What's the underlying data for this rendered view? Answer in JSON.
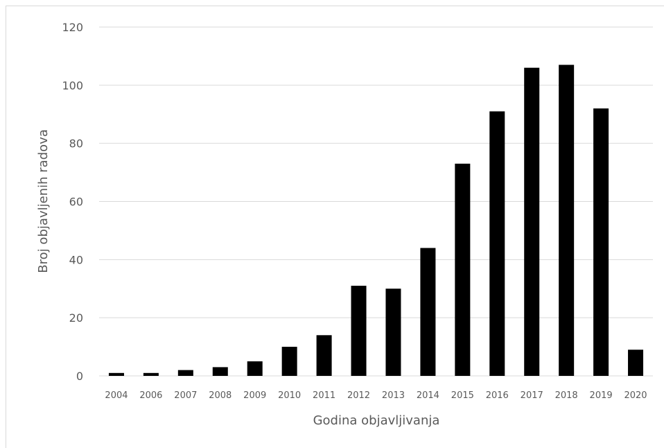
{
  "chart_data": {
    "type": "bar",
    "title": "",
    "xlabel": "Godina objavljivanja",
    "ylabel": "Broj objavljenih radova",
    "ylim": [
      0,
      120
    ],
    "yticks": [
      "0",
      "20",
      "40",
      "60",
      "80",
      "100",
      "120"
    ],
    "grid": true,
    "legend": "none",
    "categories": [
      "2004",
      "2006",
      "2007",
      "2008",
      "2009",
      "2010",
      "2011",
      "2012",
      "2013",
      "2014",
      "2015",
      "2016",
      "2017",
      "2018",
      "2019",
      "2020"
    ],
    "values": [
      1,
      1,
      2,
      3,
      5,
      10,
      14,
      31,
      30,
      44,
      73,
      91,
      106,
      107,
      92,
      9
    ],
    "bar_color": "#000000",
    "grid_color": "#d9d9d9",
    "text_color": "#595959"
  }
}
